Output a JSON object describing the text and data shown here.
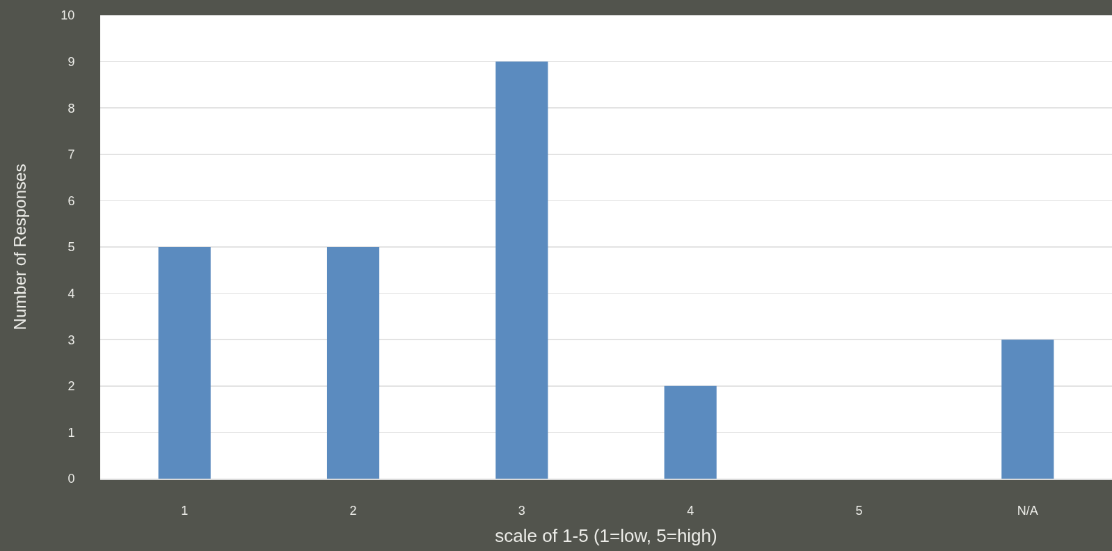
{
  "chart_data": {
    "type": "bar",
    "xlabel": "scale of 1-5 (1=low, 5=high)",
    "ylabel": "Number of Responses",
    "categories": [
      "1",
      "2",
      "3",
      "4",
      "5",
      "N/A"
    ],
    "values": [
      5,
      5,
      9,
      2,
      0,
      3
    ],
    "color": "#5b8bbf",
    "ylim": [
      0,
      10
    ],
    "yticks": [
      0,
      1,
      2,
      3,
      4,
      5,
      6,
      7,
      8,
      9,
      10
    ],
    "grid": "y"
  }
}
